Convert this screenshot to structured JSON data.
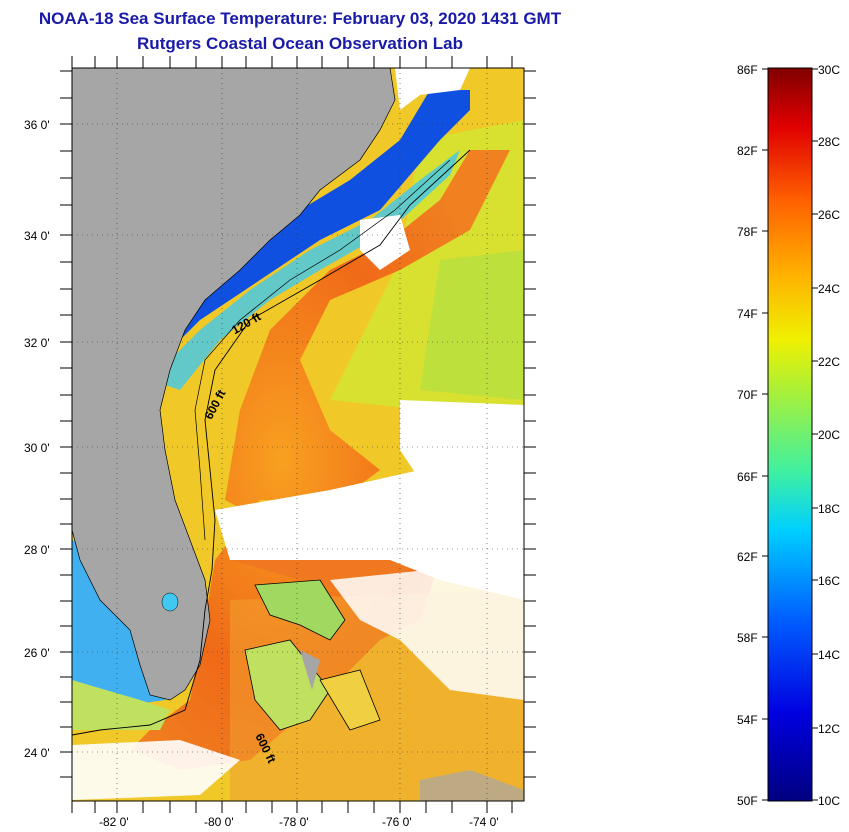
{
  "title_line1": "NOAA-18 Sea Surface Temperature:  February 03, 2020 1431 GMT",
  "title_line2": "Rutgers Coastal Ocean Observation Lab",
  "lat_labels": [
    "36 0'",
    "34 0'",
    "32 0'",
    "30 0'",
    "28 0'",
    "26 0'",
    "24 0'"
  ],
  "lon_labels": [
    "-82 0'",
    "-80 0'",
    "-78 0'",
    "-76 0'",
    "-74 0'"
  ],
  "contour_labels": [
    "120 ft",
    "600 ft",
    "600 ft"
  ],
  "colorbar": {
    "f_labels": [
      "86F",
      "82F",
      "78F",
      "74F",
      "70F",
      "66F",
      "62F",
      "58F",
      "54F",
      "50F"
    ],
    "c_labels": [
      "30C",
      "28C",
      "26C",
      "24C",
      "22C",
      "20C",
      "18C",
      "16C",
      "14C",
      "12C",
      "10C"
    ]
  },
  "colors": {
    "land": "#a6a6a6",
    "title": "#1a1aa8",
    "cloud": "#ffffff",
    "warm": "#f06020",
    "mid": "#f0d020",
    "cold": "#1040d0"
  }
}
